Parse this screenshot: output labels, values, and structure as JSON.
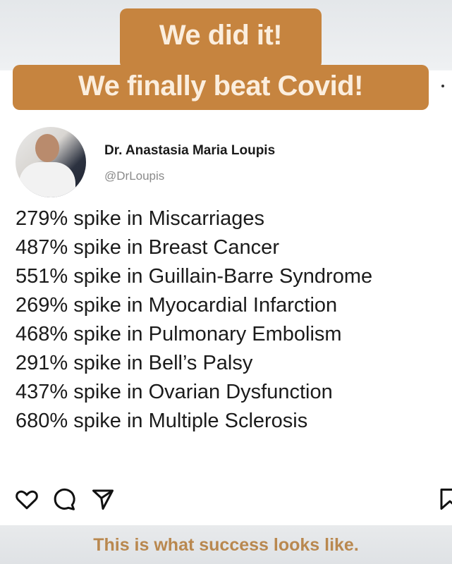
{
  "overlay": {
    "line1": "We did it!",
    "line2": "We finally beat Covid!",
    "color": "#c6843f"
  },
  "post": {
    "author_name": "Dr. Anastasia Maria Loupis",
    "author_handle": "@DrLoupis",
    "lines": [
      "279% spike in Miscarriages",
      "487% spike in Breast Cancer",
      "551% spike in Guillain-Barre Syndrome",
      "269% spike in Myocardial Infarction",
      "468% spike in Pulmonary Embolism",
      "291% spike in Bell’s Palsy",
      "437% spike in Ovarian Dysfunction",
      "680% spike in Multiple Sclerosis"
    ],
    "actions": [
      "heart-icon",
      "comment-icon",
      "share-icon",
      "bookmark-icon"
    ]
  },
  "caption": {
    "text": "This is what success looks like.",
    "color": "#b9884f"
  }
}
